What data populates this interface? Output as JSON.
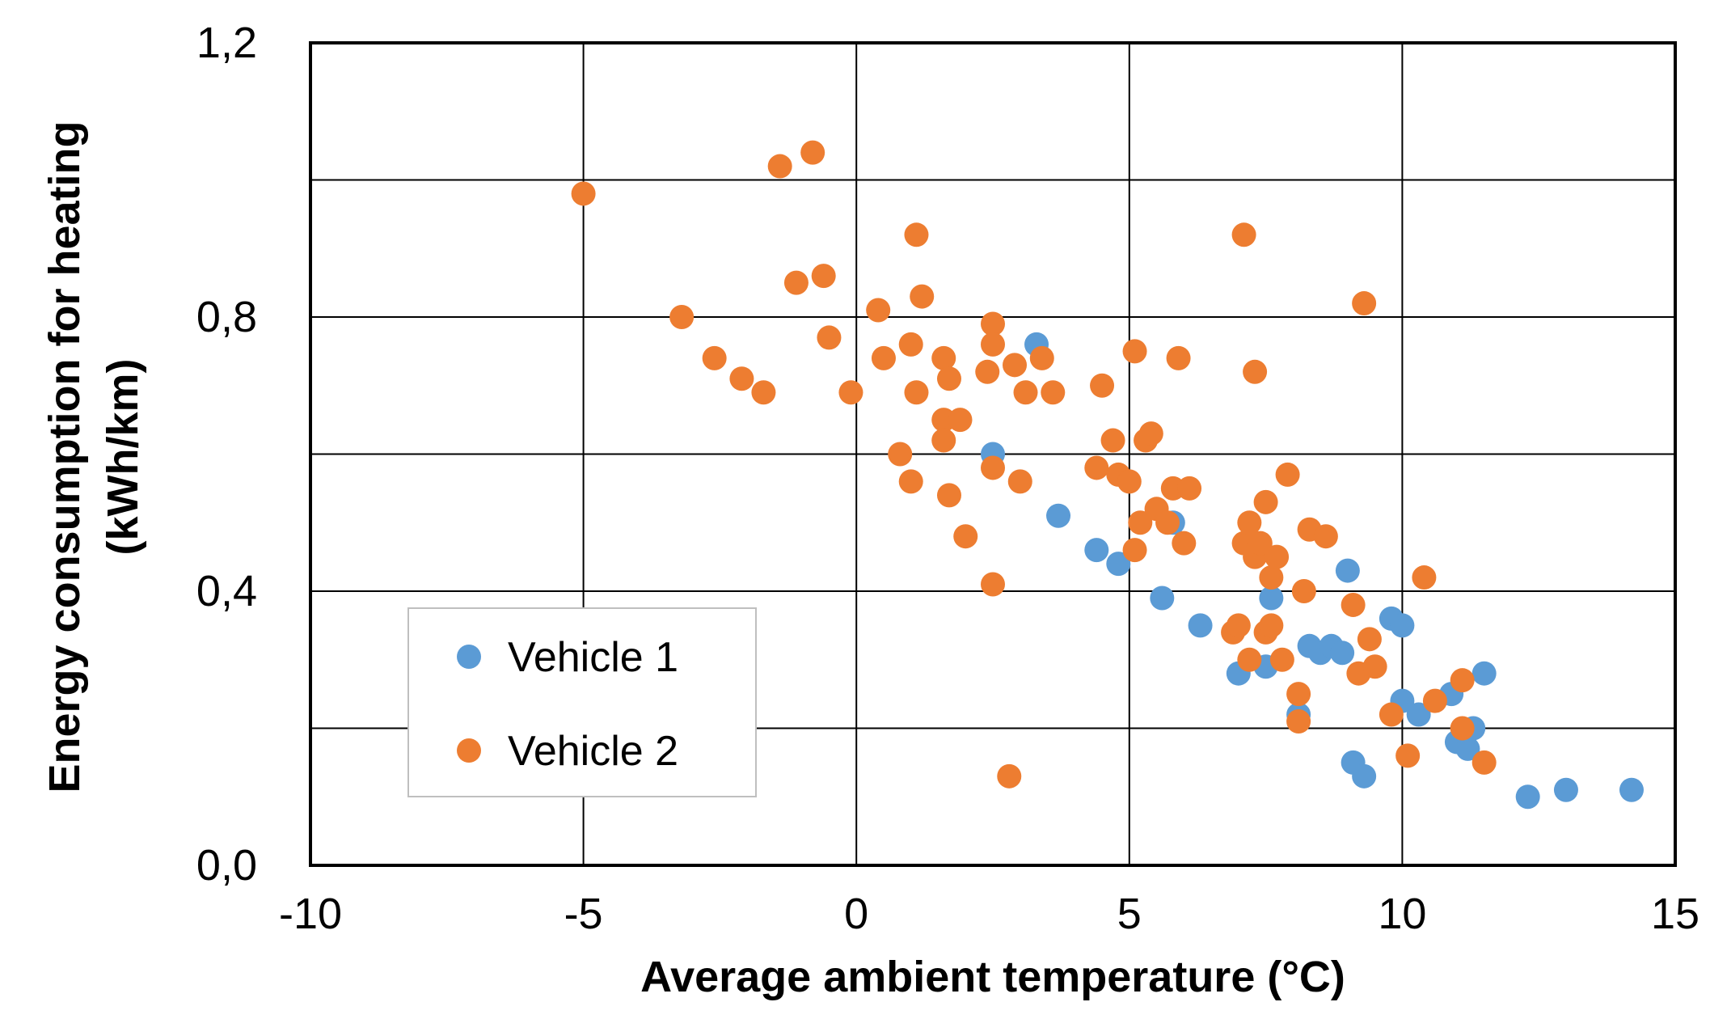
{
  "chart_data": {
    "type": "scatter",
    "title": "",
    "xlabel": "Average ambient temperature (°C)",
    "ylabel_line1": "Energy consumption for heating",
    "ylabel_line2": "(kWh/km)",
    "xlim": [
      -10,
      15
    ],
    "ylim": [
      0,
      1.2
    ],
    "x_ticks": [
      -10,
      -5,
      0,
      5,
      10,
      15
    ],
    "x_tick_labels": [
      "-10",
      "-5",
      "0",
      "5",
      "10",
      "15"
    ],
    "y_ticks": [
      0,
      0.4,
      0.8,
      1.2
    ],
    "y_tick_labels": [
      "0,0",
      "0,4",
      "0,8",
      "1,2"
    ],
    "y_gridlines": [
      0.2,
      0.4,
      0.6,
      0.8,
      1.0
    ],
    "x_gridlines": [
      -5,
      0,
      5,
      10
    ],
    "grid": true,
    "legend_position": "bottom-left",
    "series": [
      {
        "name": "Vehicle 1",
        "color": "#5B9BD5",
        "points": [
          [
            3.3,
            0.76
          ],
          [
            2.5,
            0.6
          ],
          [
            3.7,
            0.51
          ],
          [
            4.4,
            0.46
          ],
          [
            4.8,
            0.44
          ],
          [
            5.6,
            0.39
          ],
          [
            5.8,
            0.5
          ],
          [
            6.3,
            0.35
          ],
          [
            7.0,
            0.28
          ],
          [
            7.5,
            0.29
          ],
          [
            7.6,
            0.39
          ],
          [
            8.1,
            0.22
          ],
          [
            8.3,
            0.32
          ],
          [
            8.5,
            0.31
          ],
          [
            8.7,
            0.32
          ],
          [
            8.9,
            0.31
          ],
          [
            9.0,
            0.43
          ],
          [
            9.1,
            0.15
          ],
          [
            9.3,
            0.13
          ],
          [
            9.8,
            0.36
          ],
          [
            10.0,
            0.35
          ],
          [
            10.0,
            0.24
          ],
          [
            10.3,
            0.22
          ],
          [
            10.9,
            0.25
          ],
          [
            11.0,
            0.18
          ],
          [
            11.2,
            0.17
          ],
          [
            11.3,
            0.2
          ],
          [
            11.5,
            0.28
          ],
          [
            12.3,
            0.1
          ],
          [
            13.0,
            0.11
          ],
          [
            14.2,
            0.11
          ]
        ]
      },
      {
        "name": "Vehicle 2",
        "color": "#ED7D31",
        "points": [
          [
            -5.0,
            0.98
          ],
          [
            -3.2,
            0.8
          ],
          [
            -2.6,
            0.74
          ],
          [
            -2.1,
            0.71
          ],
          [
            -1.7,
            0.69
          ],
          [
            -1.4,
            1.02
          ],
          [
            -1.1,
            0.85
          ],
          [
            -0.8,
            1.04
          ],
          [
            -0.6,
            0.86
          ],
          [
            -0.5,
            0.77
          ],
          [
            -0.1,
            0.69
          ],
          [
            0.4,
            0.81
          ],
          [
            0.5,
            0.74
          ],
          [
            0.8,
            0.6
          ],
          [
            1.0,
            0.76
          ],
          [
            1.0,
            0.56
          ],
          [
            1.1,
            0.69
          ],
          [
            1.1,
            0.92
          ],
          [
            1.2,
            0.83
          ],
          [
            1.6,
            0.74
          ],
          [
            1.6,
            0.65
          ],
          [
            1.6,
            0.62
          ],
          [
            1.7,
            0.71
          ],
          [
            1.7,
            0.54
          ],
          [
            1.9,
            0.65
          ],
          [
            2.0,
            0.48
          ],
          [
            2.4,
            0.72
          ],
          [
            2.5,
            0.79
          ],
          [
            2.5,
            0.76
          ],
          [
            2.5,
            0.58
          ],
          [
            2.5,
            0.41
          ],
          [
            2.8,
            0.13
          ],
          [
            2.9,
            0.73
          ],
          [
            3.0,
            0.56
          ],
          [
            3.1,
            0.69
          ],
          [
            3.4,
            0.74
          ],
          [
            3.6,
            0.69
          ],
          [
            4.4,
            0.58
          ],
          [
            4.5,
            0.7
          ],
          [
            4.7,
            0.62
          ],
          [
            4.8,
            0.57
          ],
          [
            5.0,
            0.56
          ],
          [
            5.1,
            0.75
          ],
          [
            5.1,
            0.46
          ],
          [
            5.2,
            0.5
          ],
          [
            5.3,
            0.62
          ],
          [
            5.4,
            0.63
          ],
          [
            5.5,
            0.52
          ],
          [
            5.7,
            0.5
          ],
          [
            5.8,
            0.55
          ],
          [
            5.9,
            0.74
          ],
          [
            6.0,
            0.47
          ],
          [
            6.1,
            0.55
          ],
          [
            6.9,
            0.34
          ],
          [
            7.0,
            0.35
          ],
          [
            7.1,
            0.92
          ],
          [
            7.1,
            0.47
          ],
          [
            7.2,
            0.3
          ],
          [
            7.2,
            0.5
          ],
          [
            7.3,
            0.72
          ],
          [
            7.3,
            0.45
          ],
          [
            7.4,
            0.47
          ],
          [
            7.5,
            0.53
          ],
          [
            7.5,
            0.34
          ],
          [
            7.6,
            0.35
          ],
          [
            7.6,
            0.42
          ],
          [
            7.7,
            0.45
          ],
          [
            7.8,
            0.3
          ],
          [
            7.9,
            0.57
          ],
          [
            8.1,
            0.25
          ],
          [
            8.1,
            0.21
          ],
          [
            8.2,
            0.4
          ],
          [
            8.3,
            0.49
          ],
          [
            8.6,
            0.48
          ],
          [
            9.1,
            0.38
          ],
          [
            9.2,
            0.28
          ],
          [
            9.3,
            0.82
          ],
          [
            9.4,
            0.33
          ],
          [
            9.5,
            0.29
          ],
          [
            9.8,
            0.22
          ],
          [
            10.1,
            0.16
          ],
          [
            10.4,
            0.42
          ],
          [
            10.6,
            0.24
          ],
          [
            11.1,
            0.27
          ],
          [
            11.1,
            0.2
          ],
          [
            11.5,
            0.15
          ]
        ]
      }
    ]
  }
}
